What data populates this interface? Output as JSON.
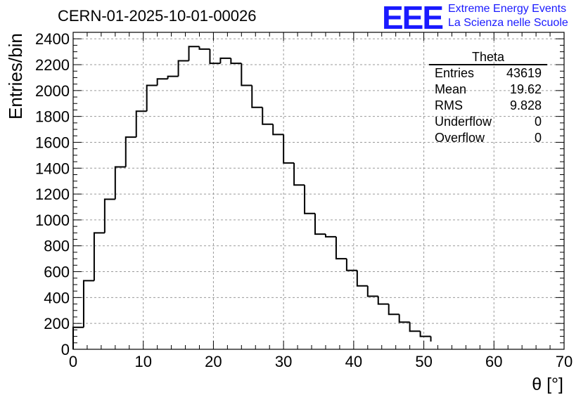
{
  "chart_data": {
    "type": "bar",
    "title": "CERN-01-2025-10-01-00026",
    "xlabel": "θ [°]",
    "ylabel": "Entries/bin",
    "xlim": [
      0,
      70
    ],
    "ylim": [
      0,
      2450
    ],
    "grid": true,
    "bin_edges": [
      0,
      1.5,
      3,
      4.5,
      6,
      7.5,
      9,
      10.5,
      12,
      13.5,
      15,
      16.5,
      18,
      19.5,
      21,
      22.5,
      24,
      25.5,
      27,
      28.5,
      30,
      31.5,
      33,
      34.5,
      36,
      37.5,
      39,
      40.5,
      42,
      43.5,
      45,
      46.5,
      48,
      49.5,
      51
    ],
    "values": [
      170,
      530,
      900,
      1160,
      1410,
      1640,
      1840,
      2040,
      2090,
      2110,
      2230,
      2340,
      2320,
      2210,
      2250,
      2210,
      2040,
      1870,
      1740,
      1660,
      1440,
      1270,
      1050,
      890,
      870,
      700,
      610,
      490,
      410,
      350,
      270,
      210,
      140,
      100,
      60
    ],
    "xticks": [
      0,
      10,
      20,
      30,
      40,
      50,
      60,
      70
    ],
    "yticks": [
      0,
      200,
      400,
      600,
      800,
      1000,
      1200,
      1400,
      1600,
      1800,
      2000,
      2200,
      2400
    ]
  },
  "stats": {
    "title": "Theta",
    "rows": [
      {
        "label": "Entries",
        "value": "43619"
      },
      {
        "label": "Mean",
        "value": "19.62"
      },
      {
        "label": "RMS",
        "value": "9.828"
      },
      {
        "label": "Underflow",
        "value": "0"
      },
      {
        "label": "Overflow",
        "value": "0"
      }
    ]
  },
  "logo": {
    "text": "EEE",
    "line1": "Extreme Energy Events",
    "line2": "La Scienza nelle Scuole",
    "color": "#1a1aff"
  }
}
